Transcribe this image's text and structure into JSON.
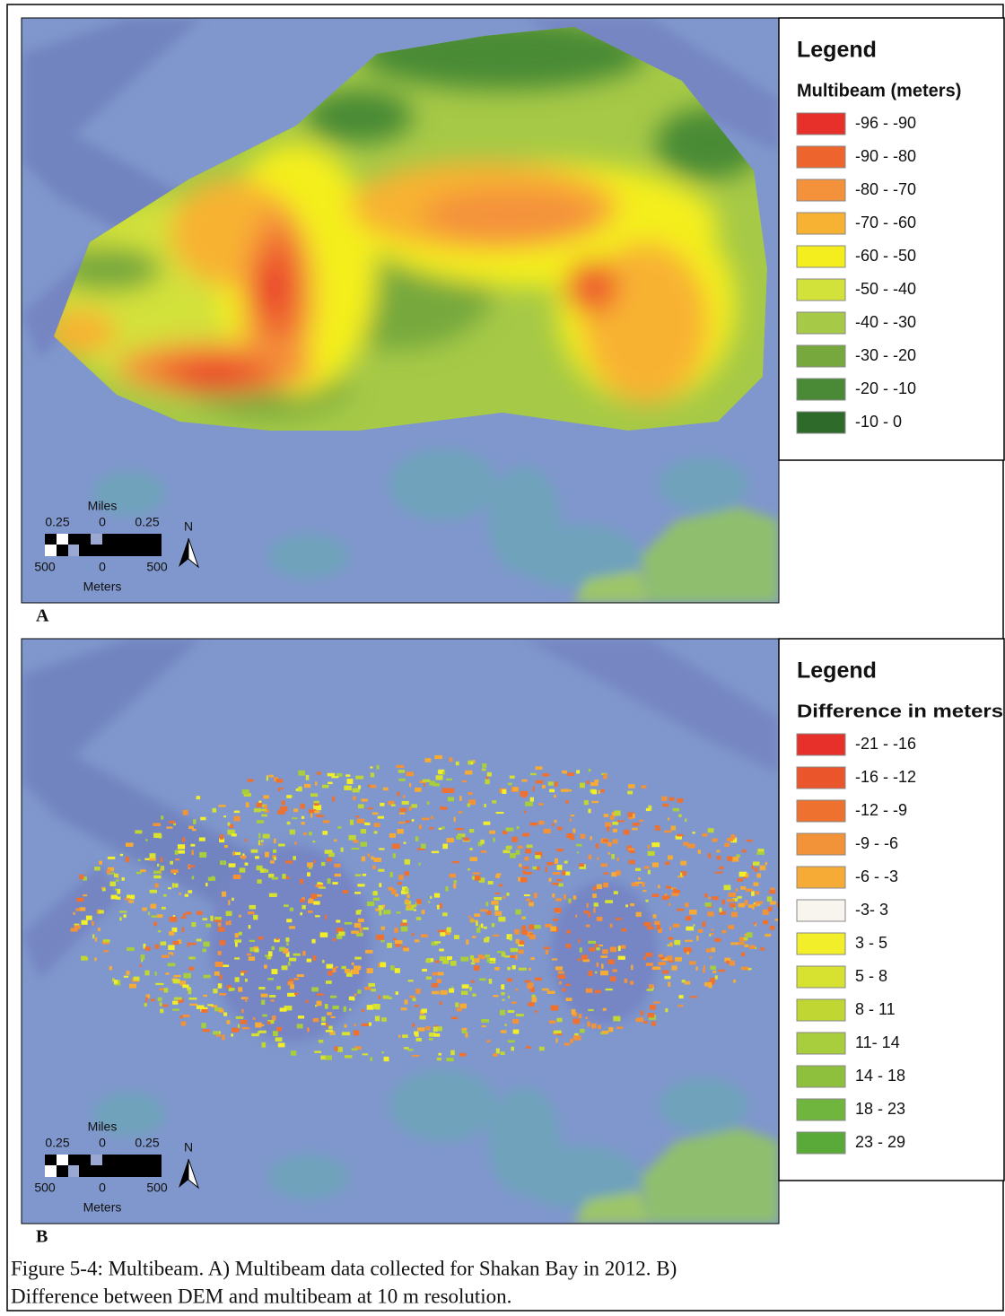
{
  "panels": [
    {
      "label": "A",
      "legend": {
        "title": "Legend",
        "subtitle": "Multibeam (meters)",
        "items": [
          {
            "label": "-96 - -90",
            "color": "#e8302a"
          },
          {
            "label": "-90 - -80",
            "color": "#ee642d"
          },
          {
            "label": "-80 - -70",
            "color": "#f4923b"
          },
          {
            "label": "-70 - -60",
            "color": "#f8b233"
          },
          {
            "label": "-60 - -50",
            "color": "#f4ee1e"
          },
          {
            "label": "-50 - -40",
            "color": "#d3e13b"
          },
          {
            "label": "-40 - -30",
            "color": "#a6c947"
          },
          {
            "label": "-30 - -20",
            "color": "#76a83d"
          },
          {
            "label": "-20 - -10",
            "color": "#4a8a36"
          },
          {
            "label": "-10 - 0",
            "color": "#2e6b2b"
          }
        ]
      },
      "scale": {
        "miles_title": "Miles",
        "miles_ticks": [
          "0.25",
          "0",
          "0.25"
        ],
        "meters_ticks": [
          "500",
          "0",
          "500"
        ],
        "meters_title": "Meters",
        "north": "N"
      }
    },
    {
      "label": "B",
      "legend": {
        "title": "Legend",
        "subtitle": "Difference in meters",
        "items": [
          {
            "label": "-21 - -16",
            "color": "#e8302a"
          },
          {
            "label": "-16 - -12",
            "color": "#ea552b"
          },
          {
            "label": "-12 - -9",
            "color": "#ee7130"
          },
          {
            "label": "-9 - -6",
            "color": "#f29239"
          },
          {
            "label": "-6 - -3",
            "color": "#f6ab36"
          },
          {
            "label": "-3- 3",
            "color": "#f8f4ee"
          },
          {
            "label": "3 - 5",
            "color": "#f2ee2a"
          },
          {
            "label": "5 - 8",
            "color": "#d6e130"
          },
          {
            "label": "8 - 11",
            "color": "#c0d632"
          },
          {
            "label": "11- 14",
            "color": "#a8cd3d"
          },
          {
            "label": "14 - 18",
            "color": "#8ec03d"
          },
          {
            "label": "18 - 23",
            "color": "#70b53d"
          },
          {
            "label": "23 - 29",
            "color": "#5aaa3a"
          }
        ]
      },
      "scale": {
        "miles_title": "Miles",
        "miles_ticks": [
          "0.25",
          "0",
          "0.25"
        ],
        "meters_ticks": [
          "500",
          "0",
          "500"
        ],
        "meters_title": "Meters",
        "north": "N"
      }
    }
  ],
  "caption": {
    "lines": [
      "Figure 5-4: Multibeam.  A) Multibeam data collected for Shakan Bay in 2012.  B)",
      "Difference between DEM and multibeam at 10 m resolution."
    ]
  }
}
